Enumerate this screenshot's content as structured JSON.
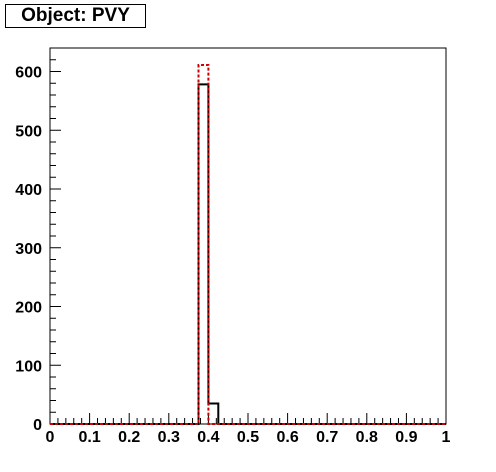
{
  "title": "Object: PVY",
  "chart_data": {
    "type": "histogram",
    "title": "Object: PVY",
    "xlabel": "",
    "ylabel": "",
    "xlim": [
      0,
      1
    ],
    "ylim": [
      0,
      640
    ],
    "x_ticks": [
      "0",
      "0.1",
      "0.2",
      "0.3",
      "0.4",
      "0.5",
      "0.6",
      "0.7",
      "0.8",
      "0.9",
      "1"
    ],
    "x_tick_values": [
      0,
      0.1,
      0.2,
      0.3,
      0.4,
      0.5,
      0.6,
      0.7,
      0.8,
      0.9,
      1
    ],
    "y_ticks": [
      "0",
      "100",
      "200",
      "300",
      "400",
      "500",
      "600"
    ],
    "y_tick_values": [
      0,
      100,
      200,
      300,
      400,
      500,
      600
    ],
    "bin_edges_start": 0,
    "bin_width": 0.025,
    "n_bins": 40,
    "series": [
      {
        "style": "solid",
        "color": "#000000",
        "nonzero_bins": [
          {
            "bin": 15,
            "x_low": 0.375,
            "x_high": 0.4,
            "value": 578
          },
          {
            "bin": 16,
            "x_low": 0.4,
            "x_high": 0.425,
            "value": 35
          }
        ]
      },
      {
        "style": "dashed",
        "color": "#cc0000",
        "nonzero_bins": [
          {
            "bin": 15,
            "x_low": 0.375,
            "x_high": 0.4,
            "value": 611
          }
        ]
      }
    ],
    "grid": false,
    "legend": "none"
  }
}
